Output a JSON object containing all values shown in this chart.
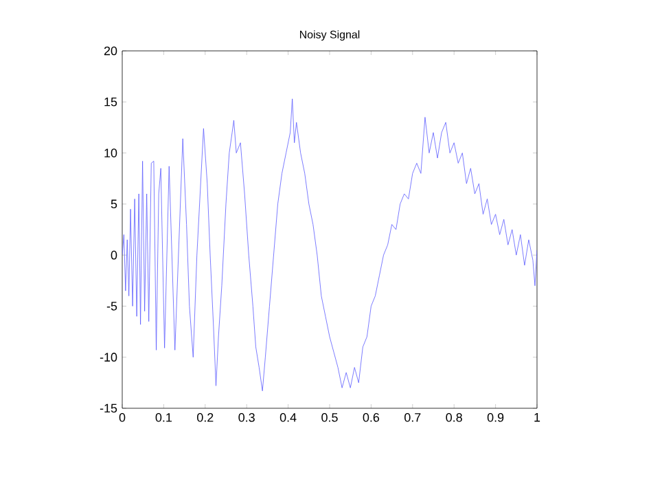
{
  "chart_data": {
    "type": "line",
    "title": "Noisy Signal",
    "xlim": [
      0,
      1
    ],
    "ylim": [
      -15,
      20
    ],
    "xticks": [
      0,
      0.1,
      0.2,
      0.3,
      0.4,
      0.5,
      0.6,
      0.7,
      0.8,
      0.9,
      1
    ],
    "yticks": [
      -15,
      -10,
      -5,
      0,
      5,
      10,
      15,
      20
    ],
    "grid": false,
    "marker": "none",
    "line_style": "solid",
    "series": [
      {
        "color": "#5a5aff",
        "x": [
          0,
          0.004,
          0.008,
          0.012,
          0.016,
          0.02,
          0.025,
          0.03,
          0.035,
          0.04,
          0.044,
          0.049,
          0.054,
          0.059,
          0.064,
          0.07,
          0.076,
          0.082,
          0.088,
          0.093,
          0.102,
          0.113,
          0.127,
          0.146,
          0.155,
          0.162,
          0.171,
          0.18,
          0.196,
          0.205,
          0.212,
          0.22,
          0.226,
          0.232,
          0.24,
          0.25,
          0.258,
          0.265,
          0.269,
          0.275,
          0.285,
          0.295,
          0.305,
          0.315,
          0.322,
          0.33,
          0.338,
          0.345,
          0.355,
          0.365,
          0.375,
          0.385,
          0.395,
          0.405,
          0.41,
          0.415,
          0.42,
          0.43,
          0.44,
          0.45,
          0.46,
          0.47,
          0.48,
          0.49,
          0.5,
          0.51,
          0.52,
          0.53,
          0.54,
          0.55,
          0.56,
          0.57,
          0.58,
          0.59,
          0.6,
          0.61,
          0.62,
          0.63,
          0.64,
          0.65,
          0.66,
          0.67,
          0.68,
          0.69,
          0.7,
          0.71,
          0.72,
          0.73,
          0.74,
          0.75,
          0.76,
          0.77,
          0.78,
          0.79,
          0.8,
          0.81,
          0.82,
          0.83,
          0.84,
          0.85,
          0.86,
          0.87,
          0.88,
          0.89,
          0.9,
          0.91,
          0.92,
          0.93,
          0.94,
          0.95,
          0.96,
          0.97,
          0.98,
          0.99,
          0.995,
          1
        ],
        "values": [
          0,
          2,
          -3.5,
          1.5,
          -4,
          4.5,
          -5,
          5.5,
          -6,
          6,
          -6.8,
          9.2,
          -5.5,
          6,
          -6.5,
          9,
          9.2,
          -9.3,
          6,
          8.5,
          -9.1,
          8.7,
          -9.3,
          11.4,
          3,
          -5,
          -10,
          0,
          12.4,
          7,
          0,
          -7,
          -12.8,
          -8,
          -3,
          5,
          10,
          12,
          13.2,
          10,
          11,
          6,
          0,
          -5,
          -9,
          -11,
          -13.3,
          -10,
          -5,
          0,
          5,
          8,
          10,
          12,
          15.3,
          11,
          13,
          10,
          8,
          5,
          3,
          0,
          -4,
          -6,
          -8,
          -9.5,
          -11,
          -13,
          -11.5,
          -13,
          -11,
          -12.5,
          -9,
          -8,
          -5,
          -4,
          -2,
          0,
          1,
          3,
          2.5,
          5,
          6,
          5.5,
          8,
          9,
          8,
          13.5,
          10,
          12,
          9.5,
          12,
          13,
          10,
          11,
          9,
          10,
          7,
          8.5,
          6,
          7,
          4,
          5.5,
          3,
          4,
          2,
          3.5,
          1,
          2.5,
          0,
          2,
          -1,
          1.5,
          -0.5,
          -3,
          0.5
        ]
      }
    ]
  }
}
